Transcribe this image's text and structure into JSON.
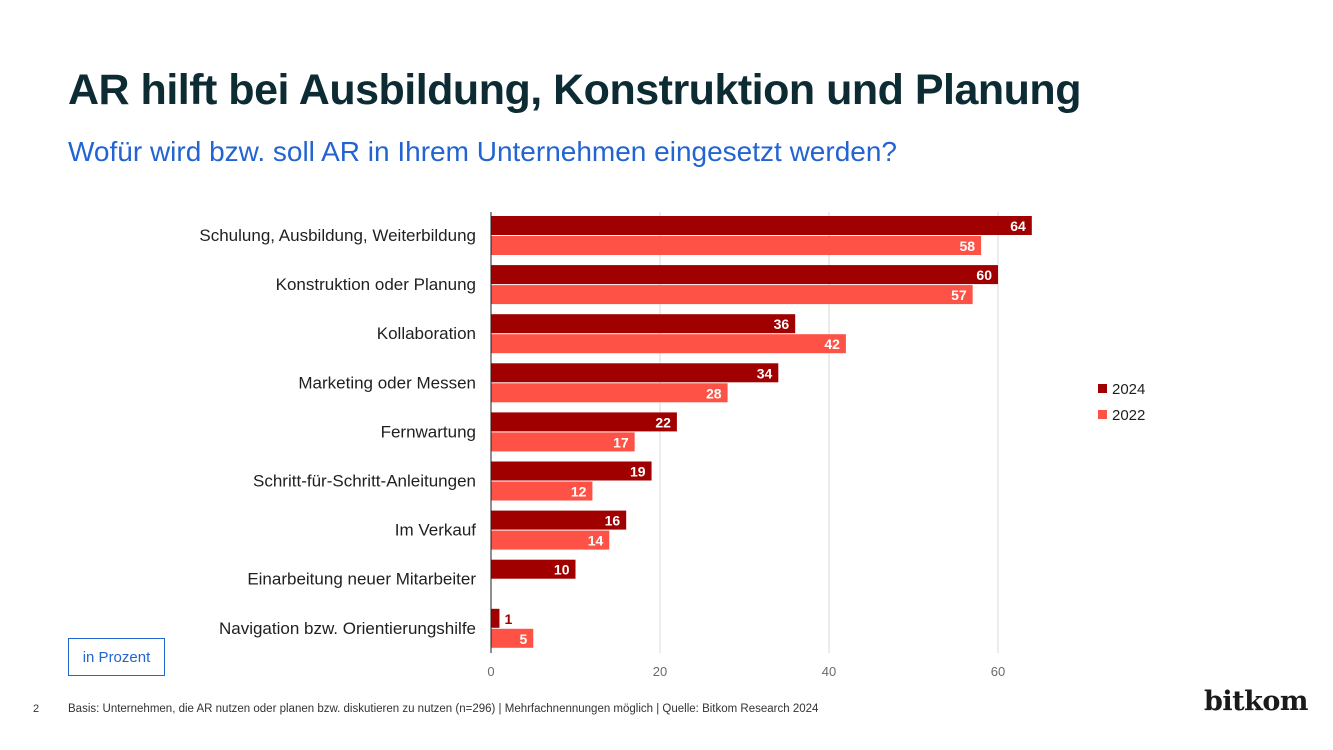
{
  "header": {
    "title": "AR hilft bei Ausbildung, Konstruktion und Planung",
    "subtitle": "Wofür wird bzw. soll AR in Ihrem Unternehmen eingesetzt werden?"
  },
  "colors": {
    "series_2024": "#a00000",
    "series_2022": "#ff5246",
    "accent": "#2264d1"
  },
  "chart_data": {
    "type": "bar",
    "orientation": "horizontal",
    "categories": [
      "Schulung, Ausbildung, Weiterbildung",
      "Konstruktion oder Planung",
      "Kollaboration",
      "Marketing oder Messen",
      "Fernwartung",
      "Schritt-für-Schritt-Anleitungen",
      "Im Verkauf",
      "Einarbeitung neuer Mitarbeiter",
      "Navigation bzw. Orientierungshilfe"
    ],
    "series": [
      {
        "name": "2024",
        "values": [
          64,
          60,
          36,
          34,
          22,
          19,
          16,
          10,
          1
        ]
      },
      {
        "name": "2022",
        "values": [
          58,
          57,
          42,
          28,
          17,
          12,
          14,
          null,
          5
        ]
      }
    ],
    "xlim": [
      0,
      70
    ],
    "xticks": [
      0,
      20,
      40,
      60
    ],
    "grid": true,
    "legend": "right"
  },
  "unit_label": "in Prozent",
  "footer": {
    "page_number": "2",
    "note": "Basis: Unternehmen, die AR nutzen oder planen bzw. diskutieren zu nutzen (n=296) | Mehrfachnennungen möglich | Quelle: Bitkom Research 2024",
    "logo_text": "bitkom"
  }
}
